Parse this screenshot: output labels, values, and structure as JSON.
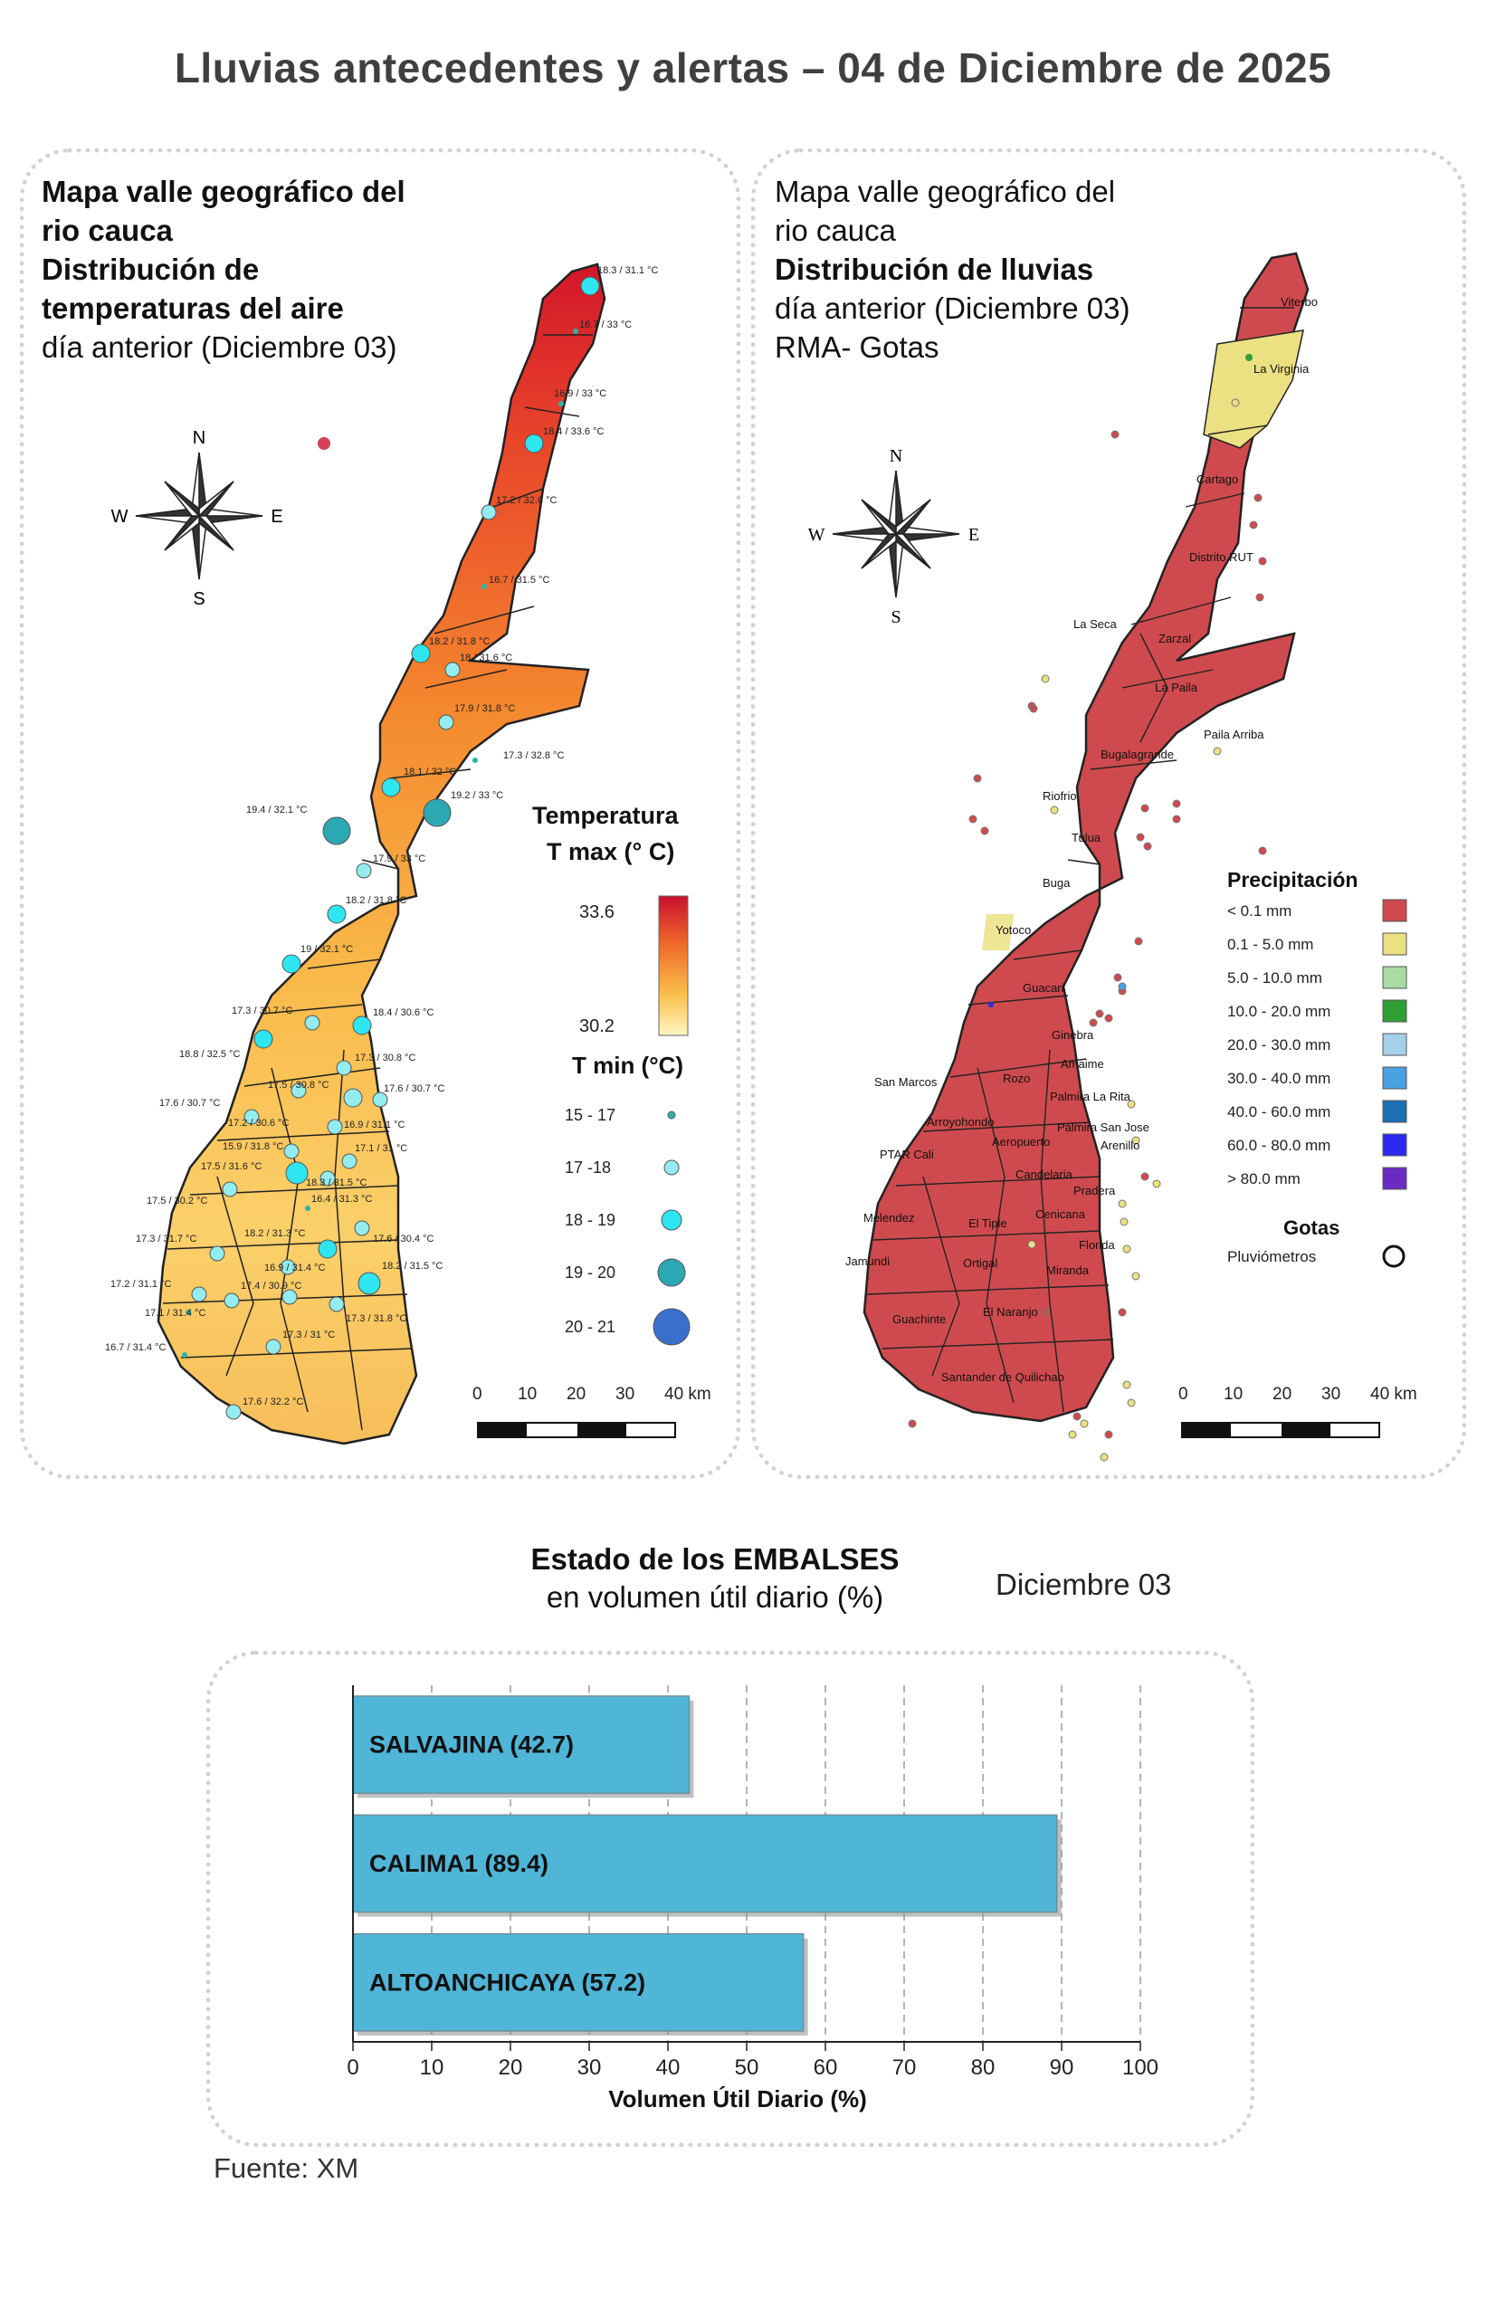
{
  "header": {
    "title": "Lluvias antecedentes y alertas – 04 de Diciembre de 2025"
  },
  "temp_panel": {
    "title_lines": [
      "Mapa valle geográfico del",
      "rio cauca",
      "Distribución de",
      "temperaturas del aire"
    ],
    "subtitle": "día anterior (Diciembre 03)",
    "compass": {
      "n": "N",
      "s": "S",
      "e": "E",
      "w": "W"
    },
    "legend_title_1": "Temperatura",
    "legend_title_2": "T max (° C)",
    "tmax_high": "33.6",
    "tmax_low": "30.2",
    "tmin_title": "T min (°C)",
    "tmin_classes": [
      {
        "label": "15 - 17",
        "color": "#2bb5a8"
      },
      {
        "label": "17 -18",
        "color": "#93ecf0"
      },
      {
        "label": "18 - 19",
        "color": "#2ee6f0"
      },
      {
        "label": "19 - 20",
        "color": "#2aa8b3"
      },
      {
        "label": "20 - 21",
        "color": "#3a6fcc"
      }
    ],
    "scale_labels": [
      "0",
      "10",
      "20",
      "30",
      "40 km"
    ],
    "stations": [
      "18.3 / 31.1 °C",
      "16.7 / 33 °C",
      "16.9 / 33 °C",
      "18.4 / 33.6 °C",
      "17.2 / 32.6 °C",
      "16.7 / 31.5 °C",
      "18.2 / 31.8 °C",
      "18 / 31.6 °C",
      "17.9 / 31.8 °C",
      "17.3 / 32.8 °C",
      "18.1 / 32 °C",
      "19.2 / 33 °C",
      "19.4 / 32.1 °C",
      "17.9 / 33 °C",
      "18.2 / 31.8 °C",
      "19 / 32.1 °C",
      "17.3 / 30.7 °C",
      "18.4 / 30.6 °C",
      "18.8 / 32.5 °C",
      "17.3 / 30.8 °C",
      "17.5 / 30.8 °C",
      "17.6 / 30.7 °C",
      "17.6 / 30.7 °C",
      "17.2 / 30.6 °C",
      "16.9 / 31.1 °C",
      "15.9 / 31.8 °C",
      "17.1 / 31 °C",
      "17.5 / 31.6 °C",
      "18.3 / 31.5 °C",
      "17.5 / 30.2 °C",
      "16.4 / 31.3 °C",
      "17.3 / 31.7 °C",
      "18.2 / 31.3 °C",
      "17.6 / 30.4 °C",
      "16.9 / 31.4 °C",
      "18.2 / 31.5 °C",
      "17.2 / 31.1 °C",
      "17.4 / 30.9 °C",
      "17.1 / 31.4 °C",
      "17.3 / 31.8 °C",
      "17.3 / 31 °C",
      "16.7 / 31.4 °C",
      "17.6 / 32.2 °C"
    ]
  },
  "rain_panel": {
    "title_lines": [
      "Mapa valle geográfico del",
      "rio cauca"
    ],
    "title_bold": "Distribución de lluvias",
    "subtitle_1": "día anterior (Diciembre 03)",
    "subtitle_2": "RMA- Gotas",
    "compass": {
      "n": "N",
      "s": "S",
      "e": "E",
      "w": "W"
    },
    "legend_title": "Precipitación",
    "precip_classes": [
      {
        "label": "< 0.1 mm",
        "color": "#cf4a4e"
      },
      {
        "label": "0.1 - 5.0 mm",
        "color": "#ebe082"
      },
      {
        "label": "5.0 - 10.0 mm",
        "color": "#a9dca4"
      },
      {
        "label": "10.0 - 20.0 mm",
        "color": "#2f9f35"
      },
      {
        "label": "20.0 - 30.0 mm",
        "color": "#a5d0ea"
      },
      {
        "label": "30.0 - 40.0 mm",
        "color": "#49a1e2"
      },
      {
        "label": "40.0 - 60.0 mm",
        "color": "#1b6fb2"
      },
      {
        "label": "60.0 - 80.0 mm",
        "color": "#2b2bf0"
      },
      {
        "label": "> 80.0 mm",
        "color": "#6a2bc2"
      }
    ],
    "gotas_title": "Gotas",
    "gotas_label": "Pluviómetros",
    "scale_labels": [
      "0",
      "10",
      "20",
      "30",
      "40 km"
    ],
    "places": [
      "Viterbo",
      "La Virginia",
      "Cartago",
      "Distrito RUT",
      "La Seca",
      "Zarzal",
      "La Paila",
      "Paila Arriba",
      "Bugalagrande",
      "Riofrio",
      "Tulua",
      "Buga",
      "Yotoco",
      "Guacari",
      "Ginebra",
      "San Marcos",
      "Amaime",
      "Rozo",
      "Palmira La Rita",
      "Arroyohondo",
      "Palmira San Jose",
      "Aeropuerto",
      "Arenillo",
      "PTAR Cali",
      "Candelaria",
      "Pradera",
      "Melendez",
      "El Tiple",
      "Cenicana",
      "Florida",
      "Jamundi",
      "Ortigal",
      "Miranda",
      "El Naranjo",
      "Guachinte",
      "Santander de Quilichao"
    ]
  },
  "reservoirs": {
    "title_bold": "Estado de los EMBALSES",
    "title_sub": "en volumen útil diario (%)",
    "date": "Diciembre 03",
    "source": "Fuente: XM"
  },
  "chart_data": {
    "type": "bar",
    "orientation": "horizontal",
    "categories": [
      "SALVAJINA",
      "CALIMA1",
      "ALTOANCHICAYA"
    ],
    "bar_labels": [
      "SALVAJINA (42.7)",
      "CALIMA1 (89.4)",
      "ALTOANCHICAYA (57.2)"
    ],
    "values": [
      42.7,
      89.4,
      57.2
    ],
    "xlabel": "Volumen Útil Diario (%)",
    "xlim": [
      0,
      100
    ],
    "xticks": [
      "0",
      "10",
      "20",
      "30",
      "40",
      "50",
      "60",
      "70",
      "80",
      "90",
      "100"
    ],
    "grid": true,
    "bar_color": "#4fb6d8"
  }
}
